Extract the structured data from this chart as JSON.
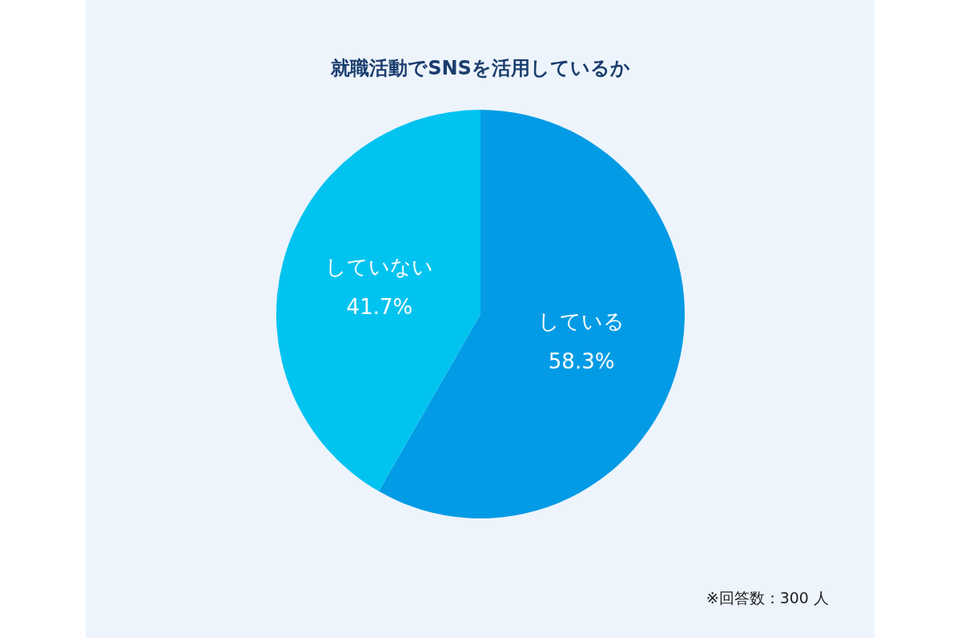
{
  "chart_data": {
    "type": "pie",
    "title": "就職活動でSNSを活用しているか",
    "categories": [
      "している",
      "していない"
    ],
    "values": [
      58.3,
      41.7
    ],
    "value_labels": [
      "58.3%",
      "41.7%"
    ],
    "colors": [
      "#039be5",
      "#00c3f0"
    ],
    "legend": false,
    "annotations": [
      "※回答数：300 人"
    ]
  }
}
